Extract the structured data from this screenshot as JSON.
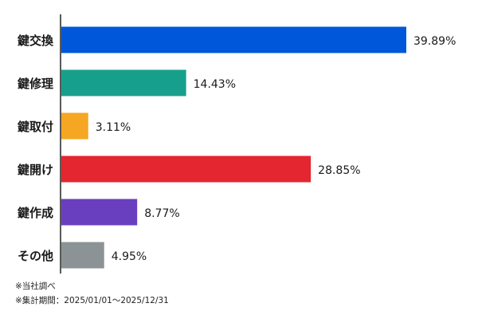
{
  "chart_data": {
    "type": "bar",
    "orientation": "horizontal",
    "categories": [
      "鍵交換",
      "鍵修理",
      "鍵取付",
      "鍵開け",
      "鍵作成",
      "その他"
    ],
    "values": [
      39.89,
      14.43,
      3.11,
      28.85,
      8.77,
      4.95
    ],
    "value_labels": [
      "39.89%",
      "14.43%",
      "3.11%",
      "28.85%",
      "8.77%",
      "4.95%"
    ],
    "colors": [
      "#0057d9",
      "#16a08c",
      "#f5a623",
      "#e3262f",
      "#6a3fbf",
      "#8c9396"
    ],
    "xlim": [
      0,
      39.89
    ],
    "grid": false,
    "legend": "none"
  },
  "notes": {
    "source": "※当社調べ",
    "period": "※集計期間：2025/01/01〜2025/12/31"
  }
}
